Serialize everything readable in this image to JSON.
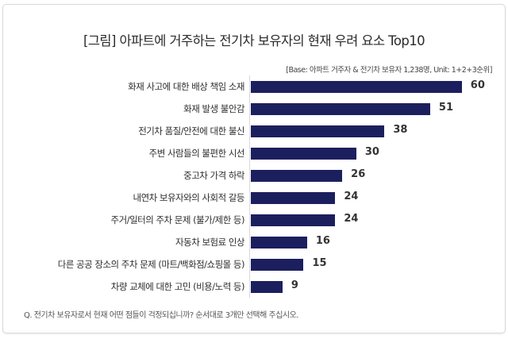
{
  "title": "[그림] 아파트에 거주하는 전기차 보유자의 현재 우려 요소 Top10",
  "base_note": "[Base: 아파트 거주자 & 전기차 보유자 1,238명, Unit: 1+2+3순위]",
  "question": "Q. 전기차 보유자로서 현재 어떤 점들이 걱정되십니까? 순서대로 3개만 선택해 주십시오.",
  "colors": {
    "bar": "#1c1f5e",
    "axis": "#d8d8d8",
    "border": "#d9d9d9"
  },
  "chart_data": {
    "type": "bar",
    "orientation": "horizontal",
    "title": "[그림] 아파트에 거주하는 전기차 보유자의 현재 우려 요소 Top10",
    "subtitle": "[Base: 아파트 거주자 & 전기차 보유자 1,238명, Unit: 1+2+3순위]",
    "xlabel": "",
    "ylabel": "",
    "grid": false,
    "legend": null,
    "categories": [
      "화재 사고에 대한 배상 책임 소재",
      "화재 발생 불안감",
      "전기차 품질/안전에 대한 불신",
      "주변 사람들의 불편한 시선",
      "중고차 가격 하락",
      "내연차 보유자와의 사회적 갈등",
      "주거/일터의 주차 문제 (불가/제한 등)",
      "자동차 보험료 인상",
      "다른 공공 장소의 주차 문제 (마트/백화점/쇼핑몰 등)",
      "차량 교체에 대한 고민 (비용/노력 등)"
    ],
    "values": [
      60,
      51,
      38,
      30,
      26,
      24,
      24,
      16,
      15,
      9
    ],
    "value_labels": [
      "60",
      "51",
      "38",
      "30",
      "26",
      "24",
      "24",
      "16",
      "15",
      "9"
    ],
    "xlim": [
      0,
      60
    ],
    "annotation": "Q. 전기차 보유자로서 현재 어떤 점들이 걱정되십니까? 순서대로 3개만 선택해 주십시오."
  }
}
